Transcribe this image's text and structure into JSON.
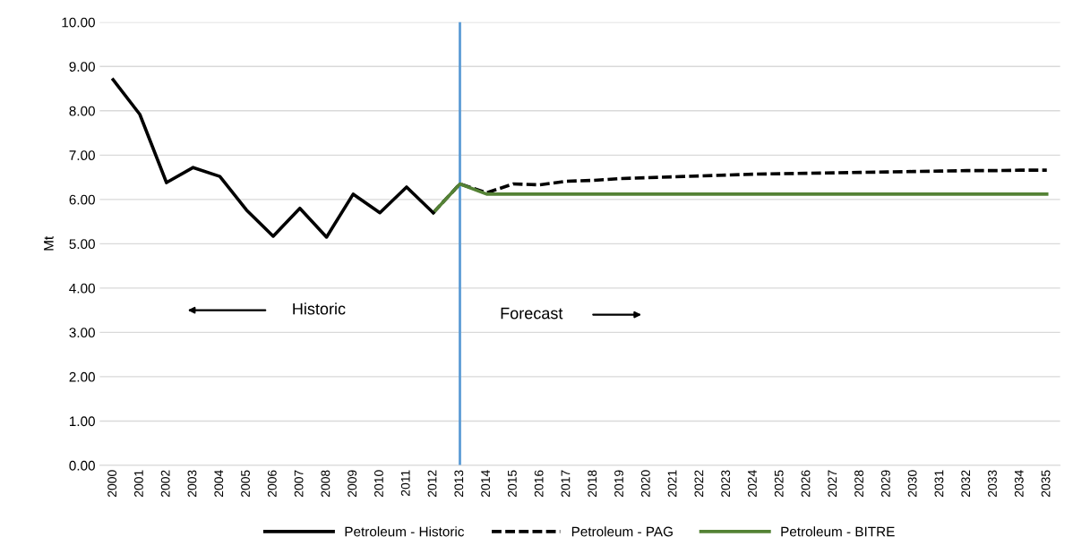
{
  "chart_data": {
    "type": "line",
    "ylabel": "Mt",
    "categories": [
      "2000",
      "2001",
      "2002",
      "2003",
      "2004",
      "2005",
      "2006",
      "2007",
      "2008",
      "2009",
      "2010",
      "2011",
      "2012",
      "2013",
      "2014",
      "2015",
      "2016",
      "2017",
      "2018",
      "2019",
      "2020",
      "2021",
      "2022",
      "2023",
      "2024",
      "2025",
      "2026",
      "2027",
      "2028",
      "2029",
      "2030",
      "2031",
      "2032",
      "2033",
      "2034",
      "2035"
    ],
    "series": [
      {
        "name": "Petroleum - Historic",
        "color": "#000000",
        "line_style": "solid",
        "values": [
          8.7,
          7.92,
          6.38,
          6.72,
          6.52,
          5.76,
          5.17,
          5.8,
          5.15,
          6.12,
          5.7,
          6.28,
          5.7,
          null,
          null,
          null,
          null,
          null,
          null,
          null,
          null,
          null,
          null,
          null,
          null,
          null,
          null,
          null,
          null,
          null,
          null,
          null,
          null,
          null,
          null,
          null
        ]
      },
      {
        "name": "Petroleum - PAG",
        "color": "#000000",
        "line_style": "dashed",
        "values": [
          null,
          null,
          null,
          null,
          null,
          null,
          null,
          null,
          null,
          null,
          null,
          null,
          5.7,
          6.35,
          6.15,
          6.35,
          6.33,
          6.41,
          6.43,
          6.47,
          6.49,
          6.51,
          6.53,
          6.55,
          6.57,
          6.58,
          6.59,
          6.6,
          6.61,
          6.62,
          6.63,
          6.64,
          6.65,
          6.65,
          6.66,
          6.66
        ]
      },
      {
        "name": "Petroleum - BITRE",
        "color": "#548235",
        "line_style": "solid",
        "values": [
          null,
          null,
          null,
          null,
          null,
          null,
          null,
          null,
          null,
          null,
          null,
          null,
          5.7,
          6.35,
          6.12,
          6.12,
          6.12,
          6.12,
          6.12,
          6.12,
          6.12,
          6.12,
          6.12,
          6.12,
          6.12,
          6.12,
          6.12,
          6.12,
          6.12,
          6.12,
          6.12,
          6.12,
          6.12,
          6.12,
          6.12,
          6.12
        ]
      }
    ],
    "ylim": [
      0,
      10
    ],
    "yticks": [
      {
        "value": 0,
        "label": "0.00"
      },
      {
        "value": 1,
        "label": "1.00"
      },
      {
        "value": 2,
        "label": "2.00"
      },
      {
        "value": 3,
        "label": "3.00"
      },
      {
        "value": 4,
        "label": "4.00"
      },
      {
        "value": 5,
        "label": "5.00"
      },
      {
        "value": 6,
        "label": "6.00"
      },
      {
        "value": 7,
        "label": "7.00"
      },
      {
        "value": 8,
        "label": "8.00"
      },
      {
        "value": 9,
        "label": "9.00"
      },
      {
        "value": 10,
        "label": "10.00"
      }
    ],
    "ref_lines": [
      {
        "axis": "x",
        "value": "2013",
        "color": "#5b9bd5",
        "line_style": "solid"
      }
    ],
    "annotations": [
      "Historic",
      "Forecast"
    ],
    "grid": "y",
    "legend": "bottom",
    "marker": "none"
  }
}
